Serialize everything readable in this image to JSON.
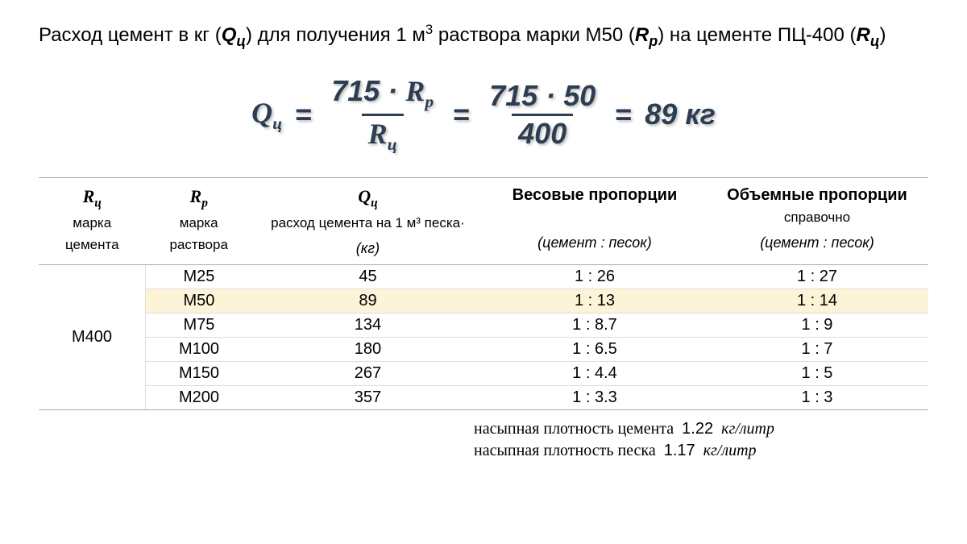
{
  "heading": {
    "prefix": "Расход цемент в кг (",
    "q_sym": "Q",
    "q_sub": "ц",
    "mid1": ") для получения 1 м",
    "sup3": "3",
    "mid2": " раствора марки М50 (",
    "rp_sym": "R",
    "rp_sub": "р",
    "mid3": ")  на цементе ПЦ-400 (",
    "rc_sym": "R",
    "rc_sub": "ц",
    "end": ")"
  },
  "formula": {
    "lhs_sym": "Q",
    "lhs_sub": "ц",
    "eq": "=",
    "frac1_num_const": "715 ·",
    "frac1_num_sym": "R",
    "frac1_num_sub": "р",
    "frac1_den_sym": "R",
    "frac1_den_sub": "ц",
    "frac2_num": "715 · 50",
    "frac2_den": "400",
    "result_val": "89",
    "result_unit": "кг",
    "color": "#2d3e52"
  },
  "table": {
    "headers": {
      "c1_sym": "R",
      "c1_sub": "ц",
      "c1_line1": "марка",
      "c1_line2": "цемента",
      "c2_sym": "R",
      "c2_sub": "р",
      "c2_line1": "марка",
      "c2_line2": "раствора",
      "c3_sym": "Q",
      "c3_sub": "ц",
      "c3_line1": "расход цемента на 1 м³ песка·",
      "c3_unit": "(кг)",
      "c4_title": "Весовые пропорции",
      "c4_unit": "(цемент : песок)",
      "c5_title": "Объемные пропорции",
      "c5_sub": "справочно",
      "c5_unit": "(цемент : песок)"
    },
    "merged_col1": "М400",
    "highlight_index": 1,
    "highlight_color": "#fdf3d6",
    "rows": [
      {
        "rp": "М25",
        "qc": "45",
        "wprop": "1 : 26",
        "vprop": "1 : 27"
      },
      {
        "rp": "М50",
        "qc": "89",
        "wprop": "1 : 13",
        "vprop": "1 : 14"
      },
      {
        "rp": "М75",
        "qc": "134",
        "wprop": "1 : 8.7",
        "vprop": "1 : 9"
      },
      {
        "rp": "М100",
        "qc": "180",
        "wprop": "1 : 6.5",
        "vprop": "1 : 7"
      },
      {
        "rp": "М150",
        "qc": "267",
        "wprop": "1 : 4.4",
        "vprop": "1 : 5"
      },
      {
        "rp": "М200",
        "qc": "357",
        "wprop": "1 : 3.3",
        "vprop": "1 : 3"
      }
    ]
  },
  "footnotes": {
    "line1_label": "насыпная плотность цемента",
    "line1_val": "1.22",
    "line1_unit": "кг/литр",
    "line2_label": "насыпная плотность песка",
    "line2_val": "1.17",
    "line2_unit": "кг/литр"
  }
}
